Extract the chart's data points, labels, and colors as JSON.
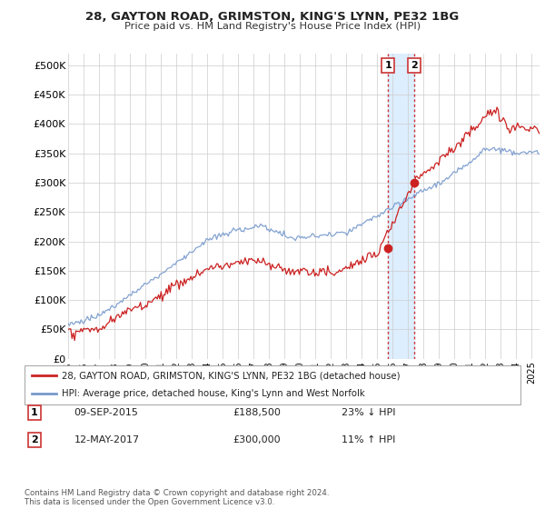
{
  "title": "28, GAYTON ROAD, GRIMSTON, KING'S LYNN, PE32 1BG",
  "subtitle": "Price paid vs. HM Land Registry's House Price Index (HPI)",
  "ylabel_ticks": [
    "£0",
    "£50K",
    "£100K",
    "£150K",
    "£200K",
    "£250K",
    "£300K",
    "£350K",
    "£400K",
    "£450K",
    "£500K"
  ],
  "ytick_values": [
    0,
    50000,
    100000,
    150000,
    200000,
    250000,
    300000,
    350000,
    400000,
    450000,
    500000
  ],
  "ylim": [
    0,
    520000
  ],
  "xlim_start": 1995.3,
  "xlim_end": 2025.5,
  "hpi_color": "#7799cc",
  "price_color": "#cc2222",
  "marker1_date": 2015.69,
  "marker1_price": 188500,
  "marker2_date": 2017.37,
  "marker2_price": 300000,
  "vline_color": "#cc3333",
  "highlight_color": "#ddeeff",
  "legend_label1": "28, GAYTON ROAD, GRIMSTON, KING'S LYNN, PE32 1BG (detached house)",
  "legend_label2": "HPI: Average price, detached house, King's Lynn and West Norfolk",
  "annotation1_date": "09-SEP-2015",
  "annotation1_price": "£188,500",
  "annotation1_pct": "23% ↓ HPI",
  "annotation2_date": "12-MAY-2017",
  "annotation2_price": "£300,000",
  "annotation2_pct": "11% ↑ HPI",
  "footer": "Contains HM Land Registry data © Crown copyright and database right 2024.\nThis data is licensed under the Open Government Licence v3.0.",
  "background_color": "#ffffff",
  "grid_color": "#cccccc"
}
